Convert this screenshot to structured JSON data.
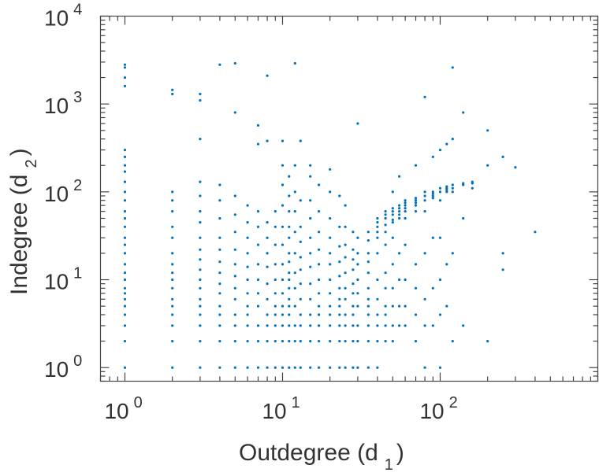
{
  "chart_data": {
    "type": "scatter",
    "title": "",
    "xlabel": {
      "main": "Outdegree (d",
      "sub": "1",
      "close": ")"
    },
    "ylabel": {
      "main": "Indegree (d",
      "sub": "2",
      "close": ")"
    },
    "xscale": "log",
    "yscale": "log",
    "xlim": [
      0.7,
      1000
    ],
    "ylim": [
      0.7,
      10000
    ],
    "x_ticks": [
      {
        "value": 1,
        "base": "10",
        "exp": "0"
      },
      {
        "value": 10,
        "base": "10",
        "exp": "1"
      },
      {
        "value": 100,
        "base": "10",
        "exp": "2"
      }
    ],
    "y_ticks": [
      {
        "value": 1,
        "base": "10",
        "exp": "0"
      },
      {
        "value": 10,
        "base": "10",
        "exp": "1"
      },
      {
        "value": 100,
        "base": "10",
        "exp": "2"
      },
      {
        "value": 1000,
        "base": "10",
        "exp": "3"
      },
      {
        "value": 10000,
        "base": "10",
        "exp": "4"
      }
    ],
    "grid": false,
    "marker_color": "#0072BD",
    "columns": [
      {
        "x": 1,
        "y": [
          1,
          2,
          3,
          4,
          5,
          6,
          7,
          8,
          10,
          12,
          15,
          20,
          25,
          30,
          40,
          50,
          60,
          80,
          100,
          130,
          170,
          200,
          250,
          300,
          1600,
          2000,
          2600,
          2800
        ]
      },
      {
        "x": 2,
        "y": [
          1,
          2,
          3,
          4,
          5,
          6,
          8,
          10,
          12,
          15,
          20,
          30,
          40,
          60,
          80,
          100,
          1300,
          1450
        ]
      },
      {
        "x": 3,
        "y": [
          1,
          2,
          3,
          4,
          5,
          6,
          8,
          10,
          13,
          17,
          22,
          30,
          45,
          60,
          90,
          130,
          400,
          1100,
          1300
        ]
      },
      {
        "x": 4,
        "y": [
          1,
          2,
          3,
          4,
          5,
          7,
          9,
          12,
          16,
          22,
          30,
          50,
          80,
          120,
          2800
        ]
      },
      {
        "x": 5,
        "y": [
          1,
          2,
          3,
          4,
          6,
          8,
          11,
          15,
          22,
          35,
          55,
          90,
          800,
          2900
        ]
      },
      {
        "x": 6,
        "y": [
          1,
          2,
          3,
          4,
          5,
          7,
          10,
          14,
          20,
          30,
          45,
          70
        ]
      },
      {
        "x": 7,
        "y": [
          1,
          2,
          3,
          5,
          7,
          10,
          15,
          25,
          40,
          60,
          350,
          570
        ]
      },
      {
        "x": 8,
        "y": [
          1,
          2,
          3,
          4,
          6,
          9,
          14,
          20,
          30,
          45,
          380,
          2100
        ]
      },
      {
        "x": 9,
        "y": [
          1,
          2,
          3,
          4,
          5,
          7,
          10,
          15,
          25,
          40,
          60
        ]
      },
      {
        "x": 10,
        "y": [
          1,
          2,
          3,
          4,
          5,
          7,
          10,
          15,
          25,
          40,
          70,
          120,
          200,
          380
        ]
      },
      {
        "x": 11,
        "y": [
          1,
          2,
          3,
          4,
          5,
          6,
          8,
          10,
          12,
          16,
          20,
          30,
          40,
          60,
          90,
          150
        ]
      },
      {
        "x": 12,
        "y": [
          1,
          2,
          3,
          5,
          8,
          12,
          20,
          35,
          60,
          100,
          200,
          2900
        ]
      },
      {
        "x": 13,
        "y": [
          1,
          2,
          3,
          4,
          6,
          9,
          13,
          18,
          27,
          40,
          80,
          380
        ]
      },
      {
        "x": 15,
        "y": [
          1,
          2,
          3,
          4,
          6,
          9,
          14,
          20,
          30,
          50,
          80,
          150,
          200
        ]
      },
      {
        "x": 17,
        "y": [
          1,
          2,
          3,
          4,
          5,
          7,
          10,
          15,
          22,
          35,
          60,
          120
        ]
      },
      {
        "x": 20,
        "y": [
          1,
          2,
          3,
          4,
          5,
          7,
          10,
          15,
          20,
          30,
          50,
          100,
          180
        ]
      },
      {
        "x": 23,
        "y": [
          1,
          2,
          3,
          4,
          5,
          6,
          8,
          11,
          16,
          24,
          40,
          90
        ]
      },
      {
        "x": 25,
        "y": [
          1,
          2,
          3,
          4,
          6,
          8,
          12,
          18,
          25,
          40,
          70
        ]
      },
      {
        "x": 28,
        "y": [
          1,
          2,
          3,
          4,
          5,
          7,
          9,
          13,
          17,
          22,
          35
        ]
      },
      {
        "x": 30,
        "y": [
          1,
          2,
          3,
          5,
          7,
          10,
          15,
          20,
          30,
          600
        ]
      },
      {
        "x": 35,
        "y": [
          1,
          2,
          3,
          4,
          5,
          6,
          8,
          12,
          16,
          20,
          28,
          35
        ]
      },
      {
        "x": 40,
        "y": [
          1,
          2,
          3,
          4,
          6,
          10,
          20,
          30,
          40,
          50,
          45,
          35
        ]
      },
      {
        "x": 45,
        "y": [
          2,
          3,
          4,
          5,
          8,
          12,
          25,
          35,
          42,
          50,
          55,
          60
        ]
      },
      {
        "x": 50,
        "y": [
          2,
          3,
          5,
          8,
          15,
          30,
          45,
          55,
          60,
          100,
          48,
          65
        ]
      },
      {
        "x": 55,
        "y": [
          3,
          5,
          10,
          20,
          50,
          55,
          60,
          65,
          70,
          150
        ]
      },
      {
        "x": 60,
        "y": [
          3,
          5,
          10,
          25,
          50,
          60,
          70,
          80,
          65,
          75
        ]
      },
      {
        "x": 70,
        "y": [
          2,
          4,
          8,
          15,
          60,
          70,
          75,
          80,
          85,
          200
        ]
      },
      {
        "x": 80,
        "y": [
          1,
          3,
          6,
          20,
          60,
          80,
          90,
          100,
          1200
        ]
      },
      {
        "x": 90,
        "y": [
          3,
          8,
          30,
          85,
          90,
          95,
          100,
          250
        ]
      },
      {
        "x": 100,
        "y": [
          1,
          4,
          10,
          30,
          80,
          100,
          110,
          300
        ]
      },
      {
        "x": 110,
        "y": [
          5,
          15,
          100,
          105,
          110,
          115,
          350
        ]
      },
      {
        "x": 120,
        "y": [
          2,
          20,
          100,
          110,
          120,
          400,
          2600
        ]
      },
      {
        "x": 140,
        "y": [
          3,
          50,
          120,
          125,
          800
        ]
      },
      {
        "x": 160,
        "y": [
          110,
          125,
          130
        ]
      },
      {
        "x": 200,
        "y": [
          2,
          200,
          500
        ]
      },
      {
        "x": 250,
        "y": [
          13,
          20,
          250
        ]
      },
      {
        "x": 300,
        "y": [
          190
        ]
      },
      {
        "x": 400,
        "y": [
          35
        ]
      }
    ]
  }
}
